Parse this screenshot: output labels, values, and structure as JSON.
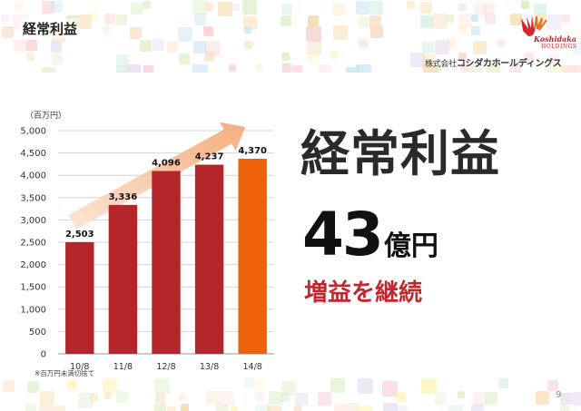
{
  "slide_title": "経常利益",
  "logo": {
    "name": "Koshidaka",
    "sub": "HOLDINGS"
  },
  "company": {
    "prefix": "株式会社",
    "name": "コシダカホールディングス"
  },
  "headline": "経常利益",
  "amount": {
    "value": "43",
    "unit": "億円"
  },
  "tagline": "増益を継続",
  "page_number": "9",
  "colors": {
    "bar": "#b5262b",
    "highlight": "#ee6209",
    "arrow": "#f6b48a",
    "accent_text": "#c0282d"
  },
  "chart_data": {
    "type": "bar",
    "unit_label": "（百万円）",
    "categories": [
      "10/8",
      "11/8",
      "12/8",
      "13/8",
      "14/8"
    ],
    "values": [
      2503,
      3336,
      4096,
      4237,
      4370
    ],
    "data_labels": [
      "2,503",
      "3,336",
      "4,096",
      "4,237",
      "4,370"
    ],
    "highlight_index": 4,
    "ylim": [
      0,
      5000
    ],
    "yticks": [
      "0",
      "500",
      "1,000",
      "1,500",
      "2,000",
      "2,500",
      "3,000",
      "3,500",
      "4,000",
      "4,500",
      "5,000"
    ],
    "grid": true,
    "footnote": "※百万円未満切捨て",
    "trend_arrow": true
  }
}
